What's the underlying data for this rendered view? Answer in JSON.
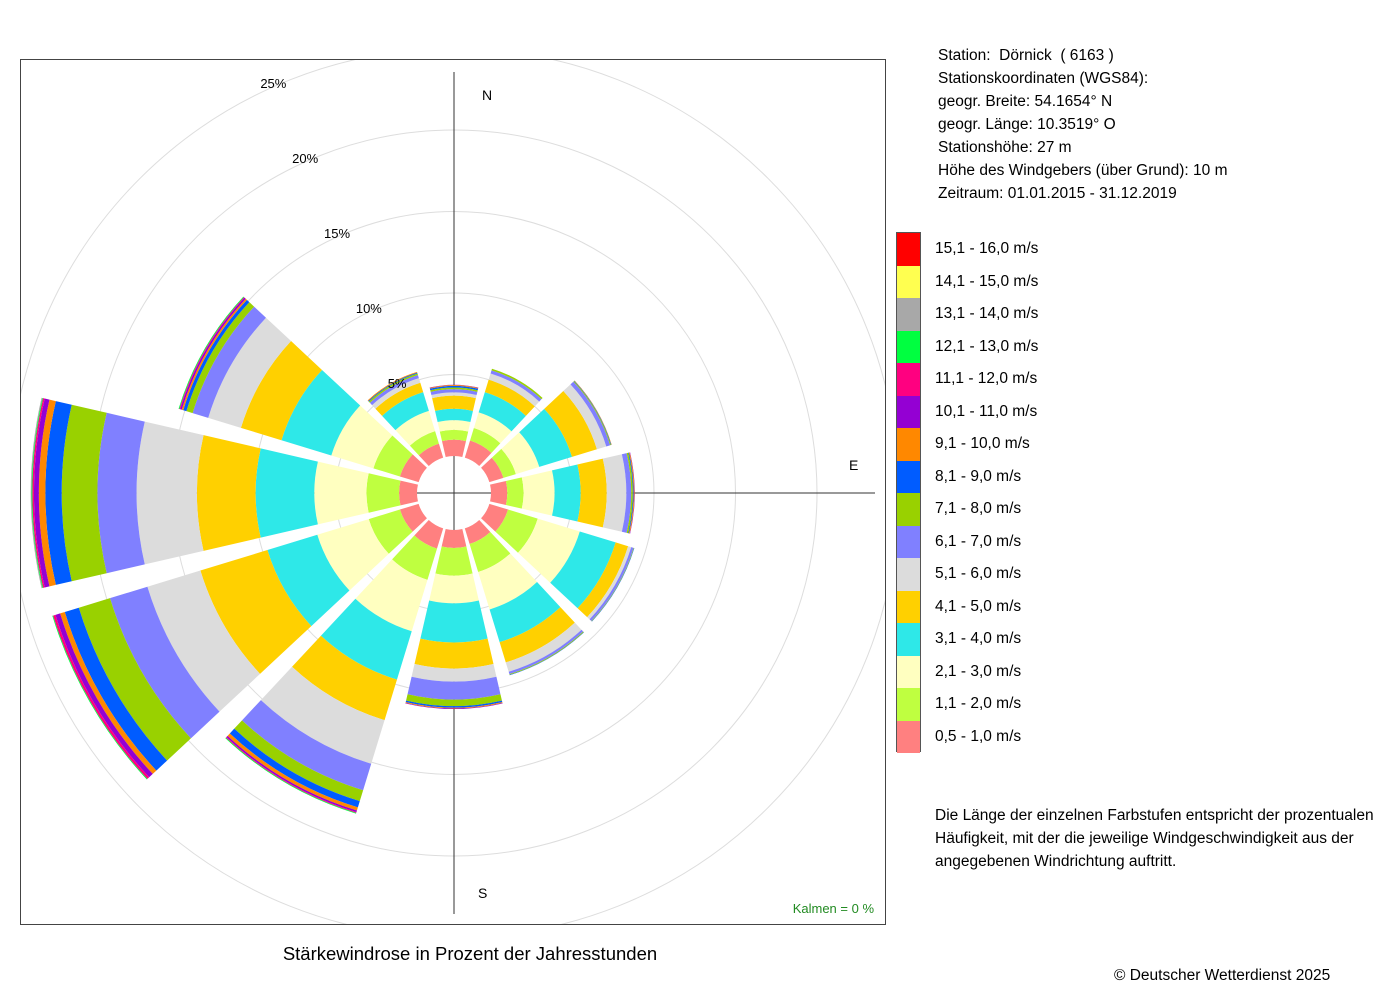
{
  "station": {
    "name_line": "Station:  Dörnick  ( 6163 )",
    "coords_title": "Stationskoordinaten (WGS84):",
    "lat": "geogr. Breite: 54.1654° N",
    "lon": "geogr. Länge: 10.3519° O",
    "height": "Stationshöhe: 27 m",
    "sensor_height": "Höhe des Windgebers (über Grund): 10 m",
    "period": "Zeitraum: 01.01.2015 - 31.12.2019"
  },
  "chart_title": "Stärkewindrose in Prozent der Jahresstunden",
  "note": "Die Länge der einzelnen Farbstufen entspricht der prozentualen Häufigkeit, mit der die jeweilige Windgeschwindigkeit aus der angegebenen Windrichtung auftritt.",
  "copyright": "© Deutscher Wetterdienst  2025",
  "calms": "Kalmen  =  0 %",
  "compass": {
    "n": "N",
    "e": "E",
    "s": "S"
  },
  "chart_data": {
    "type": "wind-rose",
    "directions_deg": [
      0,
      30,
      60,
      90,
      120,
      150,
      180,
      210,
      240,
      270,
      300,
      330
    ],
    "ring_labels": [
      "5%",
      "10%",
      "15%",
      "20%",
      "25%"
    ],
    "ring_values": [
      5,
      10,
      15,
      20,
      25
    ],
    "speed_classes": [
      {
        "label": "0,5 - 1,0 m/s",
        "color": "#ff8080"
      },
      {
        "label": "1,1 - 2,0 m/s",
        "color": "#bfff40"
      },
      {
        "label": "2,1 - 3,0 m/s",
        "color": "#ffffc0"
      },
      {
        "label": "3,1 - 4,0 m/s",
        "color": "#2ee8e8"
      },
      {
        "label": "4,1 - 5,0 m/s",
        "color": "#ffd000"
      },
      {
        "label": "5,1 - 6,0 m/s",
        "color": "#dcdcdc"
      },
      {
        "label": "6,1 - 7,0 m/s",
        "color": "#8080ff"
      },
      {
        "label": "7,1 - 8,0 m/s",
        "color": "#99d100"
      },
      {
        "label": "8,1 - 9,0 m/s",
        "color": "#005cff"
      },
      {
        "label": "9,1 - 10,0 m/s",
        "color": "#ff8800"
      },
      {
        "label": "10,1 - 11,0 m/s",
        "color": "#9400d3"
      },
      {
        "label": "11,1 - 12,0 m/s",
        "color": "#ff0080"
      },
      {
        "label": "12,1 - 13,0 m/s",
        "color": "#00ff40"
      },
      {
        "label": "13,1 - 14,0 m/s",
        "color": "#a8a8a8"
      },
      {
        "label": "14,1 - 15,0 m/s",
        "color": "#ffff50"
      },
      {
        "label": "15,1 - 16,0 m/s",
        "color": "#ff0000"
      }
    ],
    "cumulative_percent": [
      [
        1.0,
        1.6,
        2.2,
        2.9,
        3.7,
        3.9,
        4.1,
        4.2,
        4.3,
        4.35,
        4.37,
        4.38,
        4.39,
        4.4,
        4.4,
        4.4
      ],
      [
        1.1,
        1.9,
        2.9,
        4.2,
        5.0,
        5.4,
        5.6,
        5.7,
        5.7,
        5.7,
        5.7,
        5.7,
        5.7,
        5.7,
        5.7,
        5.7
      ],
      [
        0.9,
        1.7,
        3.2,
        5.3,
        6.9,
        7.5,
        7.75,
        7.8,
        7.83,
        7.85,
        7.86,
        7.87,
        7.88,
        7.88,
        7.88,
        7.88
      ],
      [
        1.0,
        2.0,
        3.9,
        5.5,
        7.1,
        8.3,
        8.6,
        8.7,
        8.75,
        8.8,
        8.82,
        8.83,
        8.84,
        8.84,
        8.84,
        8.84
      ],
      [
        1.2,
        3.1,
        5.8,
        8.1,
        8.9,
        9.1,
        9.25,
        9.28,
        9.3,
        9.3,
        9.3,
        9.3,
        9.3,
        9.3,
        9.3,
        9.3
      ],
      [
        1.0,
        2.8,
        5.2,
        7.3,
        8.6,
        9.2,
        9.35,
        9.4,
        9.42,
        9.43,
        9.44,
        9.45,
        9.45,
        9.45,
        9.45,
        9.45
      ],
      [
        1.1,
        2.8,
        4.5,
        6.9,
        8.5,
        9.3,
        10.4,
        10.8,
        10.9,
        10.95,
        10.98,
        10.99,
        11.0,
        11.0,
        11.0,
        11.0
      ],
      [
        1.3,
        3.3,
        6.6,
        9.7,
        12.3,
        15.1,
        16.8,
        17.5,
        17.9,
        18.1,
        18.2,
        18.25,
        18.3,
        18.3,
        18.3,
        18.3
      ],
      [
        1.2,
        3.2,
        6.5,
        9.7,
        14.0,
        17.4,
        19.8,
        21.8,
        22.7,
        23.0,
        23.3,
        23.45,
        23.5,
        23.5,
        23.5,
        23.5
      ],
      [
        1.1,
        3.1,
        6.3,
        9.9,
        13.5,
        17.2,
        19.6,
        21.8,
        22.8,
        23.2,
        23.5,
        23.6,
        23.65,
        23.7,
        23.7,
        23.7
      ],
      [
        1.2,
        2.9,
        5.6,
        8.8,
        11.4,
        13.5,
        14.5,
        14.9,
        15.1,
        15.2,
        15.3,
        15.35,
        15.4,
        15.4,
        15.4,
        15.4
      ],
      [
        0.9,
        1.7,
        3.0,
        4.2,
        4.8,
        5.1,
        5.3,
        5.4,
        5.45,
        5.5,
        5.5,
        5.5,
        5.5,
        5.5,
        5.5,
        5.5
      ]
    ],
    "calms_percent": 0
  }
}
